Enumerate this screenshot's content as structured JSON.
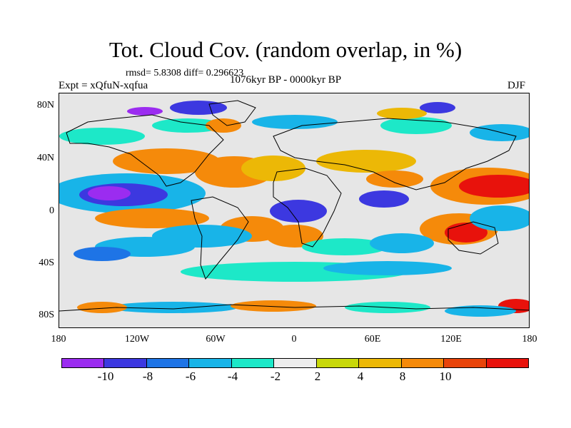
{
  "title": "Tot. Cloud Cov. (random overlap, in %)",
  "stats": "rmsd= 5.8308 diff= 0.296623",
  "expt": "Expt = xQfuN-xqfua",
  "period": "1076kyr BP - 0000kyr BP",
  "season": "DJF",
  "map": {
    "lat_labels": [
      "80N",
      "40N",
      "0",
      "40S",
      "80S"
    ],
    "lon_labels": [
      "180",
      "120W",
      "60W",
      "0",
      "60E",
      "120E",
      "180"
    ]
  },
  "colorbar": {
    "labels": [
      "-10",
      "-8",
      "-6",
      "-4",
      "-2",
      "2",
      "4",
      "8",
      "10"
    ],
    "colors": [
      "#9b2cf0",
      "#3c38e0",
      "#1e74e6",
      "#18b4e8",
      "#1de8c8",
      "#ededed",
      "#c8d80a",
      "#ecb806",
      "#f58a0a",
      "#e8440a",
      "#e8120c"
    ]
  }
}
